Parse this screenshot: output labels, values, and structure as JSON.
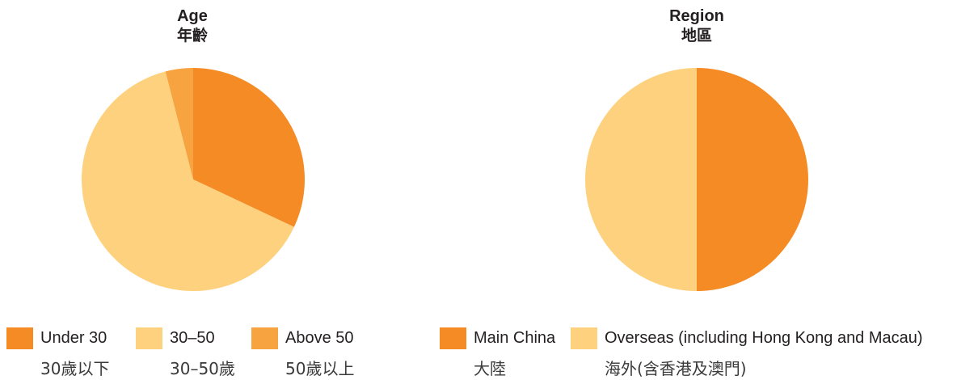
{
  "chart_data": [
    {
      "type": "pie",
      "title": "Age",
      "subtitle": "年齡",
      "slices": [
        {
          "label": "Under 30",
          "label_zh": "30歲以下",
          "value": 32,
          "color": "#f58b24"
        },
        {
          "label": "30–50",
          "label_zh": "30–50歲",
          "value": 64,
          "color": "#fed17f"
        },
        {
          "label": "Above 50",
          "label_zh": "50歲以上",
          "value": 4,
          "color": "#f7a340"
        }
      ],
      "legend": "bottom"
    },
    {
      "type": "pie",
      "title": "Region",
      "subtitle": "地區",
      "slices": [
        {
          "label": "Main China",
          "label_zh": "大陸",
          "value": 50,
          "color": "#f58b24"
        },
        {
          "label": "Overseas (including Hong Kong and Macau)",
          "label_zh": "海外(含香港及澳門)",
          "value": 50,
          "color": "#fed17f"
        }
      ],
      "legend": "bottom"
    }
  ]
}
